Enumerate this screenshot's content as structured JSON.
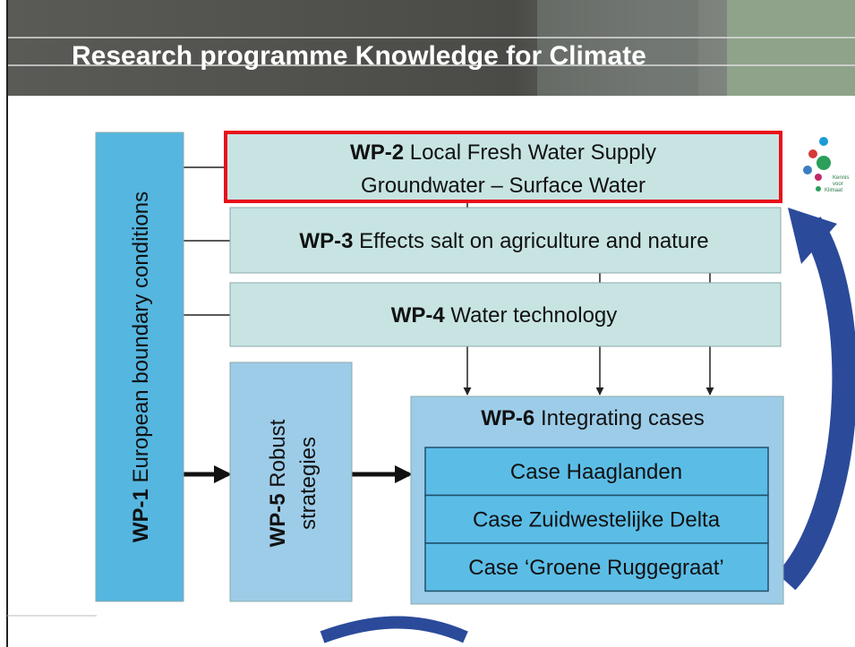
{
  "header": {
    "title": "Research programme Knowledge for Climate"
  },
  "logo": {
    "lines": [
      "Kennis",
      "voor",
      "Klimaat"
    ]
  },
  "boxes": {
    "wp1": {
      "code": "WP-1",
      "label": "European boundary conditions"
    },
    "wp2": {
      "code": "WP-2",
      "label": "Local Fresh Water Supply",
      "subtitle": "Groundwater – Surface Water"
    },
    "wp3": {
      "code": "WP-3",
      "label": "Effects salt on agriculture and nature"
    },
    "wp4": {
      "code": "WP-4",
      "label": "Water technology"
    },
    "wp5": {
      "code": "WP-5",
      "label": "Robust",
      "subtitle": "strategies"
    },
    "wp6": {
      "code": "WP-6",
      "label": "Integrating cases",
      "cases": [
        "Case Haaglanden",
        "Case Zuidwestelijke Delta",
        "Case ‘Groene Ruggegraat’"
      ]
    }
  }
}
